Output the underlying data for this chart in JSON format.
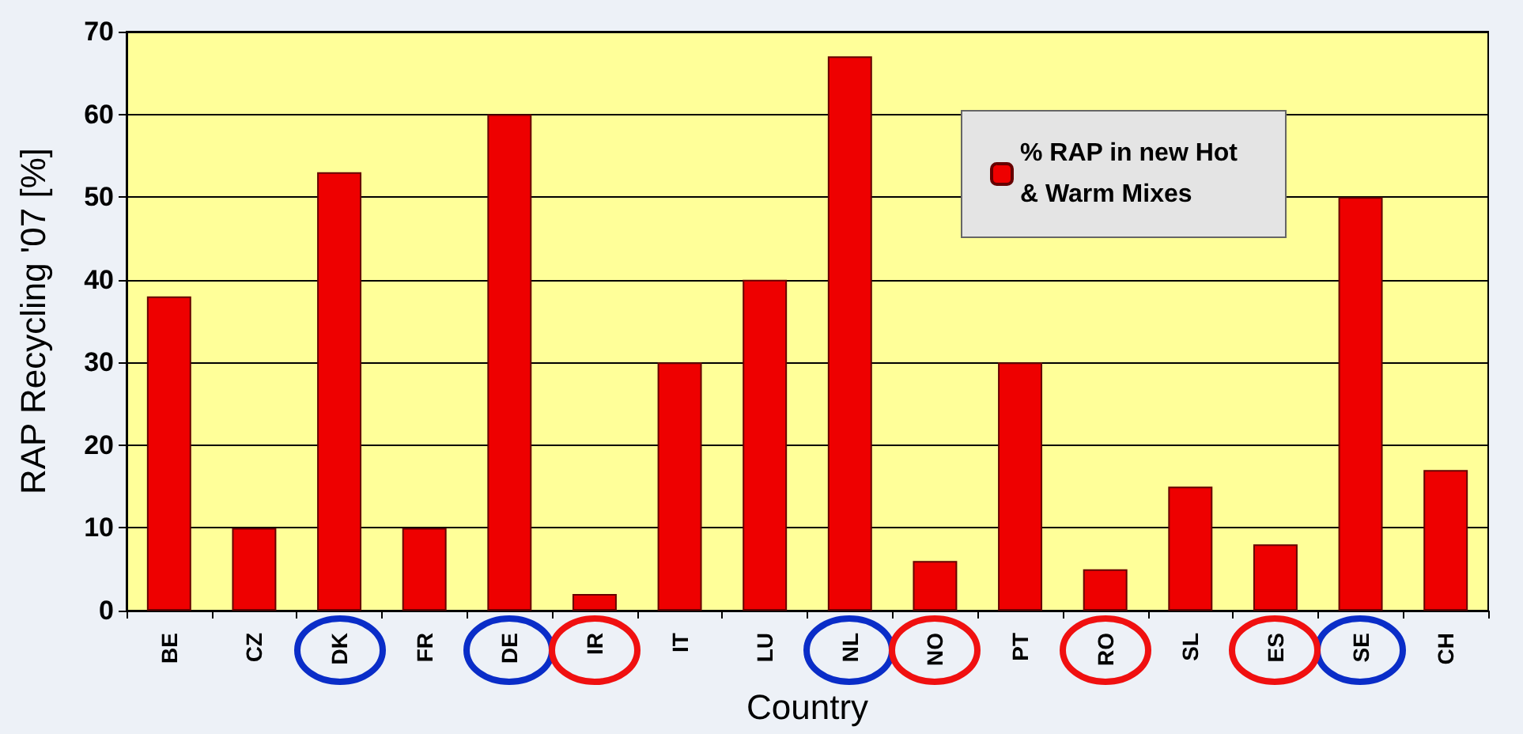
{
  "chart_data": {
    "type": "bar",
    "xlabel": "Country",
    "ylabel": "RAP Recycling '07 [%]",
    "categories": [
      "BE",
      "CZ",
      "DK",
      "FR",
      "DE",
      "IR",
      "IT",
      "LU",
      "NL",
      "NO",
      "PT",
      "RO",
      "SL",
      "ES",
      "SE",
      "CH"
    ],
    "series": [
      {
        "name": "% RAP in new Hot & Warm Mixes",
        "color": "#ee0000",
        "values": [
          38,
          10,
          53,
          10,
          60,
          2,
          30,
          40,
          67,
          6,
          30,
          5,
          15,
          8,
          50,
          17
        ]
      }
    ],
    "ylim": [
      0,
      70
    ],
    "yticks": [
      0,
      10,
      20,
      30,
      40,
      50,
      60,
      70
    ],
    "grid": "y",
    "legend": "top right"
  }
}
